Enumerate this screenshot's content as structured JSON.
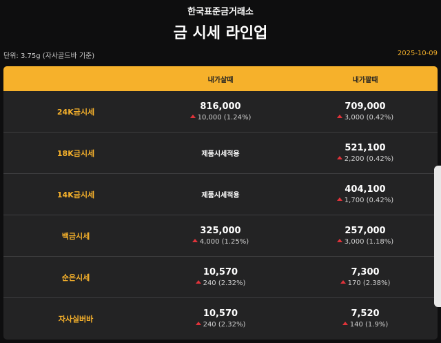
{
  "header": {
    "brand": "한국표준금거래소",
    "title": "금 시세 라인업",
    "unit": "단위: 3.75g (자사골드바 기준)",
    "date": "2025-10-09"
  },
  "table": {
    "columns": [
      "",
      "내가살때",
      "내가팔때"
    ],
    "rows": [
      {
        "name": "24K금시세",
        "buy": {
          "price": "816,000",
          "change": "10,000 (1.24%)"
        },
        "sell": {
          "price": "709,000",
          "change": "3,000 (0.42%)"
        }
      },
      {
        "name": "18K금시세",
        "buy": {
          "text": "제품시세적용"
        },
        "sell": {
          "price": "521,100",
          "change": "2,200 (0.42%)"
        }
      },
      {
        "name": "14K금시세",
        "buy": {
          "text": "제품시세적용"
        },
        "sell": {
          "price": "404,100",
          "change": "1,700 (0.42%)"
        }
      },
      {
        "name": "백금시세",
        "buy": {
          "price": "325,000",
          "change": "4,000 (1.25%)"
        },
        "sell": {
          "price": "257,000",
          "change": "3,000 (1.18%)"
        }
      },
      {
        "name": "순은시세",
        "buy": {
          "price": "10,570",
          "change": "240 (2.32%)"
        },
        "sell": {
          "price": "7,300",
          "change": "170 (2.38%)"
        }
      },
      {
        "name": "자사실버바",
        "buy": {
          "price": "10,570",
          "change": "240 (2.32%)"
        },
        "sell": {
          "price": "7,520",
          "change": "140 (1.9%)"
        }
      }
    ]
  },
  "colors": {
    "accent": "#f6b12b",
    "up": "#e0333a",
    "background": "#0e0e0f",
    "table": "#232324"
  },
  "icons": {
    "change": "triangle-up-icon"
  }
}
